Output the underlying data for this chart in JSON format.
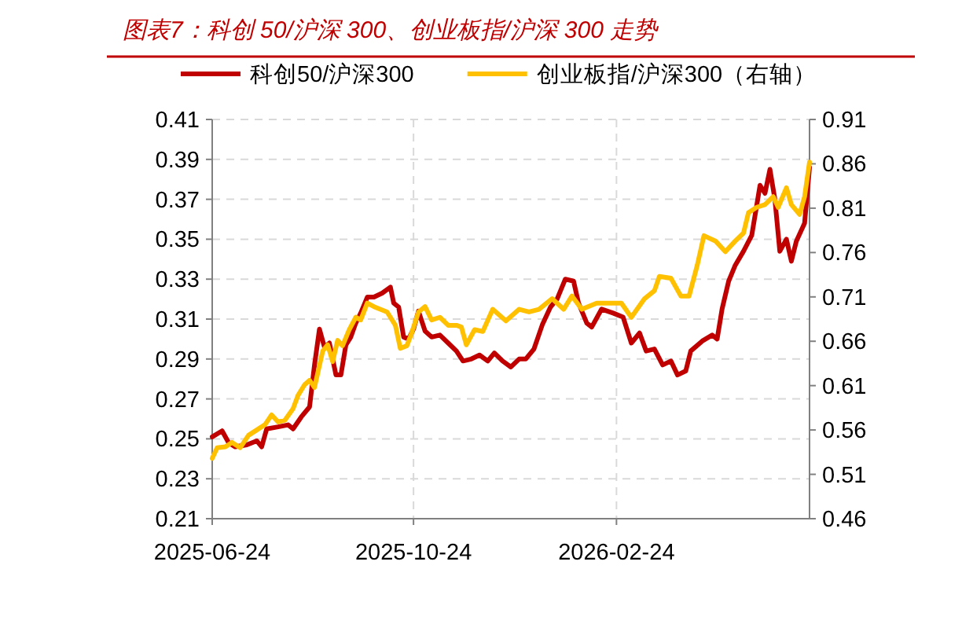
{
  "chart_data": {
    "type": "line",
    "title": "图表7：科创 50/沪深 300、创业板指/沪深 300 走势",
    "xlim": [
      "2025-06-24",
      "2026-06-21"
    ],
    "xticks": [
      "2025-06-24",
      "2025-10-24",
      "2026-02-24"
    ],
    "ylim": [
      0.21,
      0.41
    ],
    "yticks": [
      0.21,
      0.23,
      0.25,
      0.27,
      0.29,
      0.31,
      0.33,
      0.35,
      0.37,
      0.39,
      0.41
    ],
    "y2lim": [
      0.46,
      0.91
    ],
    "y2ticks": [
      0.46,
      0.51,
      0.56,
      0.61,
      0.66,
      0.71,
      0.76,
      0.81,
      0.86,
      0.91
    ],
    "grid": true,
    "legend": "top",
    "line_style": "solid",
    "marker": "none",
    "series": [
      {
        "name": "科创50/沪深300",
        "color": "#c00000",
        "x": [
          "2025-06-24",
          "2025-06-30",
          "2025-07-04",
          "2025-07-08",
          "2025-07-15",
          "2025-07-21",
          "2025-07-24",
          "2025-07-27",
          "2025-08-03",
          "2025-08-09",
          "2025-08-12",
          "2025-08-17",
          "2025-08-22",
          "2025-08-25",
          "2025-08-28",
          "2025-08-31",
          "2025-09-03",
          "2025-09-07",
          "2025-09-10",
          "2025-09-13",
          "2025-09-16",
          "2025-09-19",
          "2025-09-22",
          "2025-09-26",
          "2025-09-30",
          "2025-10-05",
          "2025-10-10",
          "2025-10-12",
          "2025-10-15",
          "2025-10-18",
          "2025-10-21",
          "2025-10-24",
          "2025-10-27",
          "2025-10-31",
          "2025-11-04",
          "2025-11-09",
          "2025-11-14",
          "2025-11-19",
          "2025-11-23",
          "2025-11-28",
          "2025-12-03",
          "2025-12-08",
          "2025-12-12",
          "2025-12-17",
          "2025-12-22",
          "2025-12-27",
          "2025-12-31",
          "2026-01-05",
          "2026-01-10",
          "2026-01-15",
          "2026-01-19",
          "2026-01-24",
          "2026-01-29",
          "2026-02-01",
          "2026-02-06",
          "2026-02-09",
          "2026-02-15",
          "2026-02-22",
          "2026-02-28",
          "2026-03-05",
          "2026-03-10",
          "2026-03-14",
          "2026-03-19",
          "2026-03-24",
          "2026-03-29",
          "2026-04-02",
          "2026-04-07",
          "2026-04-10",
          "2026-04-17",
          "2026-04-23",
          "2026-04-26",
          "2026-04-29",
          "2026-05-03",
          "2026-05-07",
          "2026-05-12",
          "2026-05-17",
          "2026-05-22",
          "2026-05-25",
          "2026-05-28",
          "2026-05-31",
          "2026-06-03",
          "2026-06-07",
          "2026-06-10",
          "2026-06-13",
          "2026-06-18",
          "2026-06-21"
        ],
        "values": [
          0.251,
          0.254,
          0.248,
          0.246,
          0.247,
          0.249,
          0.246,
          0.255,
          0.256,
          0.257,
          0.255,
          0.261,
          0.266,
          0.287,
          0.305,
          0.296,
          0.298,
          0.282,
          0.282,
          0.297,
          0.301,
          0.308,
          0.313,
          0.321,
          0.321,
          0.323,
          0.326,
          0.318,
          0.316,
          0.301,
          0.3,
          0.305,
          0.314,
          0.304,
          0.301,
          0.302,
          0.298,
          0.294,
          0.289,
          0.29,
          0.292,
          0.289,
          0.293,
          0.289,
          0.286,
          0.29,
          0.29,
          0.295,
          0.307,
          0.316,
          0.32,
          0.33,
          0.329,
          0.318,
          0.308,
          0.306,
          0.315,
          0.313,
          0.311,
          0.298,
          0.303,
          0.294,
          0.295,
          0.287,
          0.289,
          0.282,
          0.284,
          0.294,
          0.299,
          0.302,
          0.3,
          0.315,
          0.329,
          0.337,
          0.344,
          0.352,
          0.377,
          0.373,
          0.385,
          0.37,
          0.344,
          0.35,
          0.339,
          0.349,
          0.358,
          0.386
        ]
      },
      {
        "name": "创业板指/沪深300（右轴）",
        "color": "#ffc000",
        "axis": "y2",
        "x": [
          "2025-06-24",
          "2025-06-27",
          "2025-07-02",
          "2025-07-06",
          "2025-07-11",
          "2025-07-16",
          "2025-07-21",
          "2025-07-26",
          "2025-07-30",
          "2025-08-03",
          "2025-08-07",
          "2025-08-12",
          "2025-08-15",
          "2025-08-19",
          "2025-08-22",
          "2025-08-25",
          "2025-08-30",
          "2025-09-02",
          "2025-09-05",
          "2025-09-08",
          "2025-09-11",
          "2025-09-15",
          "2025-09-19",
          "2025-09-22",
          "2025-09-26",
          "2025-09-30",
          "2025-10-08",
          "2025-10-13",
          "2025-10-16",
          "2025-10-20",
          "2025-10-23",
          "2025-10-27",
          "2025-10-31",
          "2025-11-04",
          "2025-11-09",
          "2025-11-14",
          "2025-11-19",
          "2025-11-22",
          "2025-11-25",
          "2025-11-30",
          "2025-12-05",
          "2025-12-11",
          "2025-12-19",
          "2025-12-27",
          "2026-01-02",
          "2026-01-08",
          "2026-01-16",
          "2026-01-23",
          "2026-01-28",
          "2026-02-03",
          "2026-02-12",
          "2026-02-27",
          "2026-03-05",
          "2026-03-13",
          "2026-03-19",
          "2026-03-22",
          "2026-03-29",
          "2026-04-04",
          "2026-04-09",
          "2026-04-14",
          "2026-04-18",
          "2026-04-25",
          "2026-05-01",
          "2026-05-07",
          "2026-05-12",
          "2026-05-15",
          "2026-05-20",
          "2026-05-25",
          "2026-05-30",
          "2026-06-02",
          "2026-06-07",
          "2026-06-10",
          "2026-06-15",
          "2026-06-18",
          "2026-06-21"
        ],
        "values": [
          0.528,
          0.54,
          0.541,
          0.546,
          0.54,
          0.554,
          0.56,
          0.566,
          0.577,
          0.569,
          0.571,
          0.584,
          0.599,
          0.611,
          0.616,
          0.608,
          0.649,
          0.656,
          0.637,
          0.661,
          0.655,
          0.673,
          0.687,
          0.684,
          0.703,
          0.699,
          0.693,
          0.678,
          0.652,
          0.655,
          0.67,
          0.693,
          0.699,
          0.684,
          0.687,
          0.678,
          0.678,
          0.676,
          0.656,
          0.673,
          0.671,
          0.696,
          0.683,
          0.696,
          0.693,
          0.696,
          0.708,
          0.696,
          0.711,
          0.696,
          0.703,
          0.703,
          0.687,
          0.708,
          0.717,
          0.733,
          0.731,
          0.711,
          0.711,
          0.746,
          0.779,
          0.773,
          0.761,
          0.773,
          0.782,
          0.805,
          0.811,
          0.814,
          0.823,
          0.811,
          0.833,
          0.814,
          0.803,
          0.823,
          0.862
        ]
      }
    ]
  }
}
